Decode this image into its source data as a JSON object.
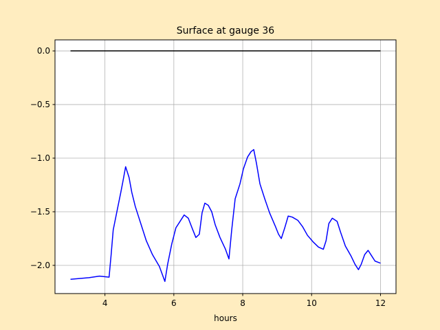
{
  "chart_data": {
    "type": "line",
    "title": "Surface at gauge 36",
    "xlabel": "hours",
    "xlim": [
      2.55,
      12.45
    ],
    "ylim": [
      -2.263,
      0.103
    ],
    "xticks": [
      4,
      6,
      8,
      10,
      12
    ],
    "yticks": [
      {
        "value": 0,
        "label": "0.0"
      },
      {
        "value": -0.5,
        "label": "−0.5"
      },
      {
        "value": -1,
        "label": "−1.0"
      },
      {
        "value": -1.5,
        "label": "−1.5"
      },
      {
        "value": -2,
        "label": "−2.0"
      }
    ],
    "grid": true,
    "series": [
      {
        "color": "#000000",
        "x": [
          3,
          12
        ],
        "values": [
          0,
          0
        ]
      },
      {
        "color": "#0000ff",
        "x": [
          3.0,
          3.54,
          3.84,
          4.12,
          4.18,
          4.24,
          4.34,
          4.46,
          4.52,
          4.6,
          4.7,
          4.78,
          4.88,
          5.04,
          5.2,
          5.38,
          5.58,
          5.74,
          5.82,
          5.94,
          6.06,
          6.18,
          6.3,
          6.42,
          6.54,
          6.64,
          6.74,
          6.82,
          6.9,
          7.0,
          7.1,
          7.2,
          7.34,
          7.5,
          7.6,
          7.68,
          7.78,
          7.92,
          8.02,
          8.14,
          8.24,
          8.32,
          8.4,
          8.5,
          8.64,
          8.78,
          8.94,
          9.04,
          9.12,
          9.22,
          9.32,
          9.44,
          9.6,
          9.74,
          9.88,
          10.04,
          10.2,
          10.34,
          10.42,
          10.5,
          10.6,
          10.74,
          10.84,
          10.98,
          11.14,
          11.26,
          11.36,
          11.44,
          11.54,
          11.64,
          11.74,
          11.84,
          12.0
        ],
        "values": [
          -2.13,
          -2.115,
          -2.1,
          -2.11,
          -1.9,
          -1.67,
          -1.51,
          -1.32,
          -1.22,
          -1.08,
          -1.18,
          -1.32,
          -1.45,
          -1.61,
          -1.77,
          -1.9,
          -2.01,
          -2.15,
          -1.99,
          -1.8,
          -1.65,
          -1.59,
          -1.53,
          -1.56,
          -1.66,
          -1.74,
          -1.71,
          -1.51,
          -1.42,
          -1.44,
          -1.5,
          -1.62,
          -1.74,
          -1.85,
          -1.94,
          -1.67,
          -1.38,
          -1.24,
          -1.1,
          -0.99,
          -0.94,
          -0.92,
          -1.05,
          -1.24,
          -1.38,
          -1.51,
          -1.63,
          -1.71,
          -1.75,
          -1.65,
          -1.54,
          -1.55,
          -1.58,
          -1.64,
          -1.72,
          -1.78,
          -1.83,
          -1.85,
          -1.77,
          -1.61,
          -1.56,
          -1.59,
          -1.69,
          -1.82,
          -1.91,
          -1.99,
          -2.04,
          -1.99,
          -1.9,
          -1.86,
          -1.91,
          -1.96,
          -1.98
        ]
      }
    ]
  }
}
